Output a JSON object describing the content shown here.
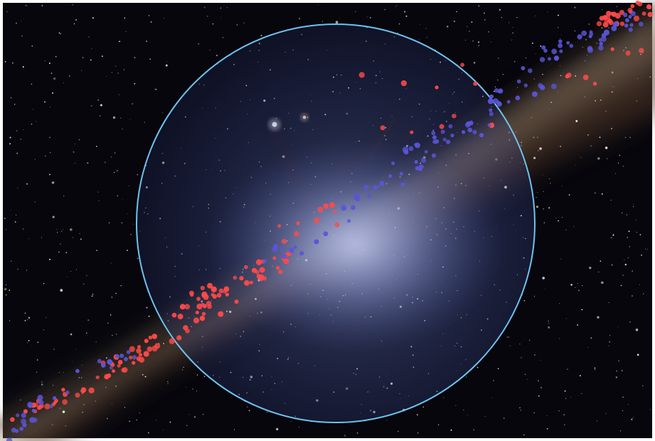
{
  "image": {
    "subject": "milky-way-night-sky",
    "colors": {
      "frame": "#ffffff",
      "sky": "#06060c",
      "band_dust": "#5a3e2a",
      "band_glow": "#c9b79a",
      "core_glow": "#dfe6f7",
      "circle_stroke": "#6ec3f0",
      "circle_fill": "#7d8fd8",
      "marker_red": "#ff4a4a",
      "marker_blue": "#5a55d8",
      "bright_star": "#fff8e8"
    }
  }
}
